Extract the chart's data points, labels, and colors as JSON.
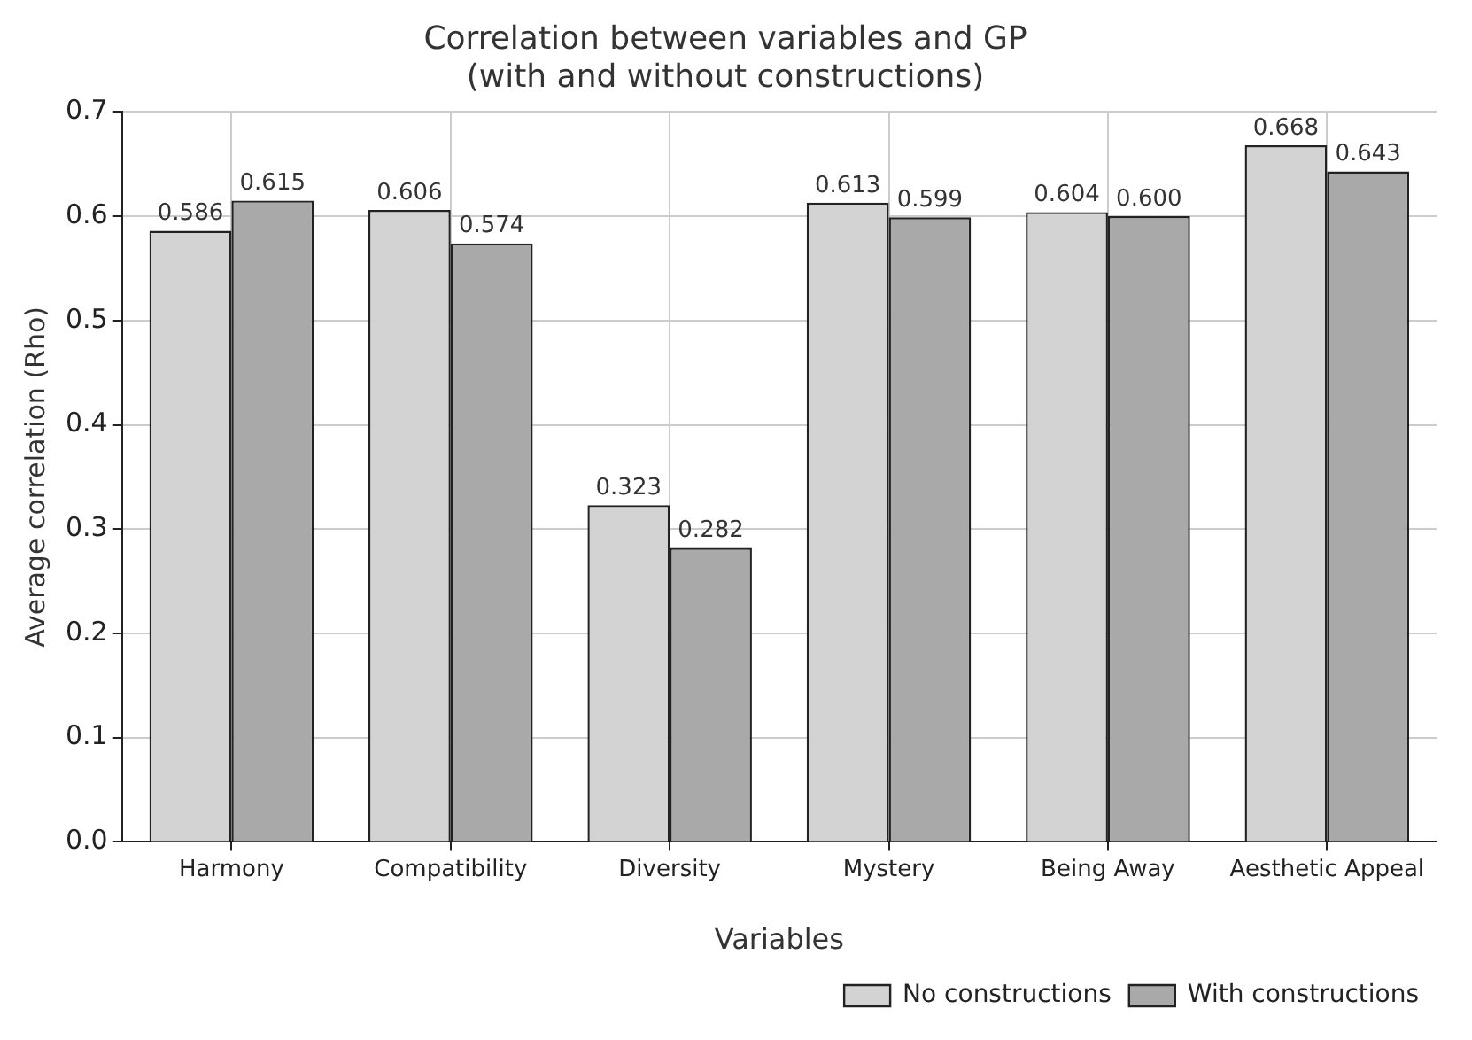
{
  "chart_data": {
    "type": "bar",
    "title": "Correlation between variables and GP",
    "subtitle": "(with and without constructions)",
    "xlabel": "Variables",
    "ylabel": "Average correlation (Rho)",
    "categories": [
      "Harmony",
      "Compatibility",
      "Diversity",
      "Mystery",
      "Being Away",
      "Aesthetic Appeal"
    ],
    "series": [
      {
        "name": "No constructions",
        "color": "#d3d3d3",
        "values": [
          0.586,
          0.606,
          0.323,
          0.613,
          0.604,
          0.668
        ],
        "value_labels": [
          "0.586",
          "0.606",
          "0.323",
          "0.613",
          "0.604",
          "0.668"
        ]
      },
      {
        "name": "With constructions",
        "color": "#a9a9a9",
        "values": [
          0.615,
          0.574,
          0.282,
          0.599,
          0.6,
          0.643
        ],
        "value_labels": [
          "0.615",
          "0.574",
          "0.282",
          "0.599",
          "0.600",
          "0.643"
        ]
      }
    ],
    "ylim": [
      0,
      0.7
    ],
    "yticks": [
      {
        "value": 0,
        "label": "0.0"
      },
      {
        "value": 0.1,
        "label": "0.1"
      },
      {
        "value": 0.2,
        "label": "0.2"
      },
      {
        "value": 0.3,
        "label": "0.3"
      },
      {
        "value": 0.4,
        "label": "0.4"
      },
      {
        "value": 0.5,
        "label": "0.5"
      },
      {
        "value": 0.6,
        "label": "0.6"
      },
      {
        "value": 0.7,
        "label": "0.7"
      }
    ],
    "grid": true,
    "legend": "bottom right"
  }
}
